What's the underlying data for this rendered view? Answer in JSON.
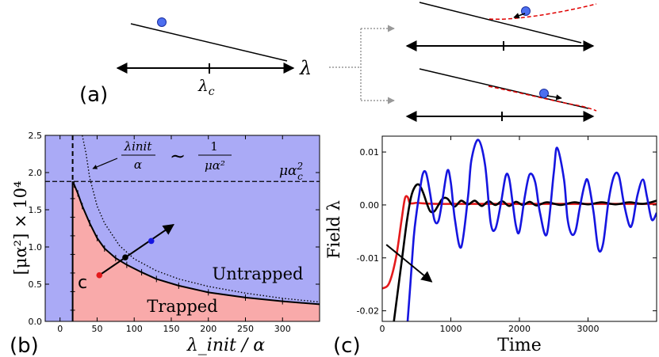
{
  "panel_labels": {
    "a": "(a)",
    "b": "(b)",
    "c": "(c)"
  },
  "panel_a": {
    "axis_label": "λ",
    "critical_label": "λ",
    "critical_subscript": "c"
  },
  "colors": {
    "untrapped": "#aaaaf6",
    "trapped": "#f9aaaa",
    "red": "#e41a1c",
    "blue": "#1515e0",
    "black": "#000000",
    "ball": "#4d6ff0",
    "dashed_red": "#e00000"
  },
  "chart_data": [
    {
      "id": "panel-b",
      "type": "area",
      "title": "",
      "xlabel": "λ_init / α",
      "ylabel": "[μα²] × 10⁴",
      "xlim": [
        -20,
        350
      ],
      "ylim": [
        0,
        2.5
      ],
      "xticks": [
        0,
        50,
        100,
        150,
        200,
        250,
        300
      ],
      "yticks": [
        0.0,
        0.5,
        1.0,
        1.5,
        2.0,
        2.5
      ],
      "region_labels": {
        "untrapped": "Untrapped",
        "trapped": "Trapped"
      },
      "critical_line": {
        "label_main": "μα",
        "label_sub": "c",
        "label_sup": "2",
        "value": 1.88
      },
      "vertical_dashed_x": 17,
      "scaling_label": {
        "lhs_num": "λinit",
        "lhs_den": "α",
        "rel": "∼",
        "rhs_num": "1",
        "rhs_den": "μα²"
      },
      "boundary": {
        "x": [
          17,
          19,
          24,
          30,
          40,
          50,
          60,
          75,
          90,
          110,
          130,
          160,
          200,
          250,
          300,
          350
        ],
        "y": [
          1.88,
          1.84,
          1.72,
          1.55,
          1.32,
          1.12,
          0.98,
          0.85,
          0.76,
          0.66,
          0.57,
          0.48,
          0.39,
          0.32,
          0.27,
          0.23
        ]
      },
      "dotted_curve": {
        "x": [
          30,
          35,
          40,
          50,
          60,
          80,
          100,
          130,
          160,
          200,
          250,
          300,
          350
        ],
        "y": [
          2.5,
          2.26,
          1.93,
          1.55,
          1.32,
          1.02,
          0.84,
          0.68,
          0.57,
          0.47,
          0.38,
          0.31,
          0.26
        ]
      },
      "markers": [
        {
          "name": "point-red",
          "x": 53,
          "y": 0.62,
          "color": "red"
        },
        {
          "name": "point-black",
          "x": 88,
          "y": 0.86,
          "color": "black"
        },
        {
          "name": "point-blue",
          "x": 123,
          "y": 1.08,
          "color": "blue"
        }
      ],
      "arrow": {
        "x1": 50,
        "y1": 0.6,
        "x2": 153,
        "y2": 1.3
      },
      "c_label": "c"
    },
    {
      "id": "panel-c",
      "type": "line",
      "title": "",
      "xlabel": "Time",
      "ylabel": "Field λ",
      "xlim": [
        0,
        4000
      ],
      "ylim": [
        -0.022,
        0.013
      ],
      "xticks": [
        0,
        1000,
        2000,
        3000
      ],
      "yticks": [
        -0.02,
        -0.01,
        0.0,
        0.01
      ],
      "ytick_labels": [
        "-0.02",
        "-0.01",
        "0.00",
        "0.01"
      ],
      "series": [
        {
          "name": "red",
          "color": "red",
          "x": [
            0,
            100,
            200,
            280,
            330,
            370,
            400,
            450,
            500,
            600,
            800,
            1200,
            2000,
            4000
          ],
          "y": [
            -0.0158,
            -0.0148,
            -0.01,
            -0.003,
            0.0012,
            0.0015,
            0.0004,
            0.0003,
            0.0004,
            0.0003,
            0.0002,
            0.0002,
            0.0002,
            0.0002
          ]
        },
        {
          "name": "black",
          "color": "black",
          "x": [
            170,
            230,
            300,
            360,
            420,
            480,
            540,
            600,
            650,
            700,
            760,
            820,
            880,
            950,
            1050,
            1150,
            1250,
            1350,
            1450,
            1550,
            1650,
            1750,
            1850,
            1950,
            2050,
            2150,
            2250,
            2400,
            2600,
            2800,
            3000,
            3200,
            3400,
            3600,
            3800,
            4000
          ],
          "y": [
            -0.022,
            -0.016,
            -0.009,
            -0.003,
            0.0015,
            0.0035,
            0.0038,
            0.0022,
            0.0003,
            -0.0012,
            -0.0012,
            0.0,
            0.0012,
            0.0012,
            -0.0003,
            0.0008,
            0.0001,
            0.0008,
            -0.0002,
            0.0007,
            0.0,
            0.0007,
            -0.0002,
            0.0006,
            0.0,
            0.0006,
            -0.0001,
            0.0005,
            0.0,
            0.0005,
            0.0001,
            0.0005,
            0.0001,
            0.0005,
            0.0002,
            0.0008
          ]
        },
        {
          "name": "blue",
          "color": "blue",
          "x": [
            370,
            410,
            460,
            500,
            540,
            590,
            640,
            700,
            760,
            820,
            880,
            950,
            1000,
            1060,
            1150,
            1250,
            1300,
            1400,
            1500,
            1580,
            1650,
            1730,
            1800,
            1850,
            1900,
            1950,
            2000,
            2080,
            2150,
            2230,
            2300,
            2400,
            2500,
            2550,
            2650,
            2700,
            2760,
            2820,
            2880,
            2950,
            3000,
            3080,
            3150,
            3220,
            3300,
            3380,
            3450,
            3520,
            3600,
            3650,
            3720,
            3800,
            3860,
            3930,
            4000
          ],
          "y": [
            -0.022,
            -0.015,
            -0.006,
            -0.0015,
            0.002,
            0.0058,
            0.006,
            0.002,
            -0.0028,
            -0.003,
            0.0012,
            0.0065,
            0.0042,
            -0.0028,
            -0.008,
            0.0015,
            0.0085,
            0.0123,
            0.0075,
            -0.0033,
            -0.0045,
            0.0003,
            0.0055,
            0.005,
            0.0005,
            -0.004,
            -0.005,
            0.0017,
            0.0058,
            0.0043,
            -0.0015,
            -0.0055,
            0.006,
            0.0108,
            0.0048,
            -0.0025,
            -0.0055,
            -0.0048,
            -0.0005,
            0.0038,
            0.0045,
            -0.0013,
            -0.0083,
            -0.0073,
            0.0008,
            0.0055,
            0.0055,
            0.0005,
            -0.0038,
            -0.0033,
            0.0018,
            0.0048,
            0.0015,
            -0.0028,
            -0.0015
          ]
        }
      ],
      "arrow": {
        "x1": 60,
        "y1": -0.0075,
        "x2": 720,
        "y2": -0.0145
      }
    }
  ]
}
